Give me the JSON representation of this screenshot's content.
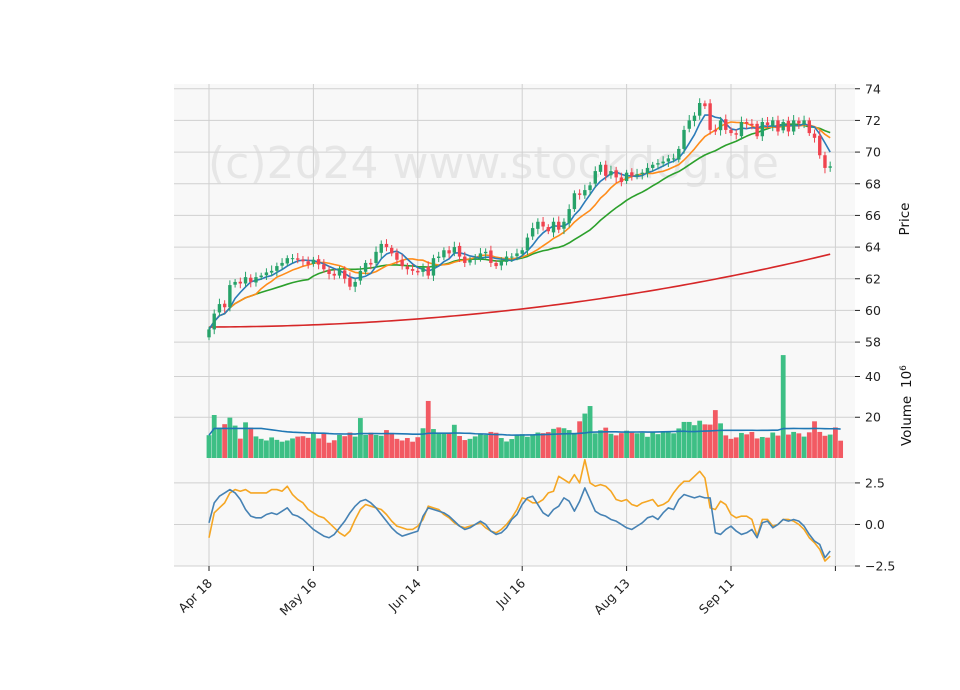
{
  "watermark": "(c)2024 www.stockdog.de",
  "colors": {
    "up": "#26a269",
    "down": "#f0434f",
    "up_vol": "#3dbf85",
    "down_vol": "#f25a63",
    "ma_blue": "#2b7bb9",
    "ma_orange": "#ff8c1a",
    "ma_green": "#2ca02c",
    "ma_red": "#d62728",
    "vol_ma": "#1f77b4",
    "osc_blue": "#4682b4",
    "osc_orange": "#f5a623",
    "panel_bg": "#f8f8f8",
    "grid": "#d0d0d0"
  },
  "chart_data": {
    "type": "candlestick",
    "x_tick_labels": [
      "Apr 18",
      "May 16",
      "Jun 14",
      "Jul 16",
      "Aug 13",
      "Sep 11"
    ],
    "x_tick_indices": [
      0,
      20,
      40,
      60,
      80,
      100
    ],
    "num_bars": 120,
    "panels": {
      "price": {
        "ylabel": "Price",
        "ylim": [
          57.5,
          74.3
        ],
        "ticks": [
          58,
          60,
          62,
          64,
          66,
          68,
          70,
          72,
          74
        ]
      },
      "volume": {
        "ylabel": "Volume",
        "ylabel_exp": "6",
        "ylim": [
          0,
          53
        ],
        "ticks": [
          20,
          40
        ]
      },
      "oscillator": {
        "ylim": [
          -2.5,
          4.0
        ],
        "ticks": [
          -2.5,
          0.0,
          2.5
        ],
        "tick_labels": [
          "−2.5",
          "0.0",
          "2.5"
        ]
      }
    },
    "closes": [
      58.8,
      59.8,
      60.4,
      60.2,
      61.6,
      61.8,
      61.7,
      62.1,
      61.8,
      62.1,
      62.2,
      62.4,
      62.5,
      62.8,
      63.0,
      63.3,
      63.3,
      63.2,
      63.1,
      62.9,
      63.2,
      62.9,
      62.6,
      62.3,
      62.2,
      62.6,
      62.0,
      61.5,
      61.8,
      62.5,
      63.0,
      62.9,
      63.7,
      64.2,
      64.0,
      63.6,
      63.2,
      62.8,
      62.6,
      62.5,
      62.4,
      62.7,
      62.2,
      63.3,
      63.4,
      63.8,
      63.6,
      64.0,
      63.4,
      63.0,
      63.2,
      63.3,
      63.6,
      63.7,
      63.0,
      62.8,
      63.1,
      63.4,
      63.4,
      63.6,
      63.8,
      64.6,
      65.2,
      65.6,
      65.3,
      65.0,
      65.6,
      65.1,
      65.6,
      66.4,
      67.4,
      67.3,
      67.6,
      67.9,
      68.8,
      69.2,
      68.5,
      68.8,
      68.4,
      68.1,
      68.7,
      68.5,
      68.6,
      68.7,
      69.0,
      69.2,
      69.3,
      69.4,
      69.6,
      69.6,
      70.2,
      71.4,
      72.0,
      72.3,
      73.1,
      72.9,
      71.4,
      71.3,
      72.0,
      71.4,
      71.2,
      71.1,
      71.9,
      71.8,
      71.7,
      71.0,
      71.9,
      71.7,
      72.0,
      71.3,
      71.9,
      71.3,
      72.0,
      71.8,
      72.0,
      71.2,
      70.9,
      69.8,
      69.0,
      69.1
    ],
    "volumes": [
      11.2,
      21.1,
      14.9,
      16.6,
      19.8,
      15.9,
      9.5,
      17.5,
      14.9,
      10.6,
      9.4,
      8.6,
      10.1,
      8.9,
      8.0,
      8.6,
      9.6,
      10.5,
      10.7,
      9.9,
      12.2,
      9.6,
      11.8,
      7.5,
      8.7,
      11.3,
      10.7,
      12.5,
      10.5,
      19.6,
      11.3,
      12.4,
      11.3,
      10.9,
      13.7,
      12.3,
      9.4,
      8.6,
      9.8,
      8.0,
      10.2,
      14.6,
      28.0,
      14.2,
      12.0,
      12.2,
      12.0,
      16.3,
      10.8,
      8.8,
      9.4,
      10.6,
      11.6,
      11.3,
      12.8,
      12.4,
      9.8,
      8.1,
      9.3,
      11.3,
      11.7,
      10.4,
      11.4,
      12.5,
      12.2,
      12.7,
      14.3,
      15.0,
      14.6,
      13.7,
      12.3,
      18.0,
      21.8,
      25.5,
      12.1,
      13.6,
      14.9,
      11.9,
      11.1,
      12.2,
      13.4,
      12.4,
      12.1,
      12.4,
      10.4,
      13.0,
      11.7,
      12.8,
      12.6,
      12.1,
      14.5,
      17.7,
      17.7,
      16.1,
      18.3,
      16.5,
      16.4,
      23.5,
      17.0,
      11.1,
      9.4,
      10.1,
      12.3,
      11.6,
      12.8,
      9.6,
      10.3,
      10.0,
      12.5,
      11.0,
      50.5,
      11.5,
      12.8,
      12.1,
      10.5,
      12.6,
      18.0,
      12.8,
      10.9,
      11.5,
      15.0,
      8.5
    ],
    "oscillator_blue": [
      0.1,
      1.3,
      1.7,
      1.9,
      2.1,
      1.9,
      1.5,
      0.9,
      0.5,
      0.4,
      0.4,
      0.6,
      0.7,
      0.6,
      0.8,
      1.0,
      0.6,
      0.5,
      0.3,
      0.0,
      -0.3,
      -0.5,
      -0.7,
      -0.8,
      -0.6,
      -0.2,
      0.2,
      0.7,
      1.1,
      1.4,
      1.5,
      1.3,
      1.0,
      0.6,
      0.2,
      -0.2,
      -0.5,
      -0.7,
      -0.6,
      -0.5,
      -0.4,
      0.5,
      1.0,
      0.9,
      0.8,
      0.7,
      0.5,
      0.2,
      -0.1,
      -0.3,
      -0.2,
      0.0,
      0.2,
      0.0,
      -0.4,
      -0.6,
      -0.5,
      -0.2,
      0.3,
      0.6,
      1.2,
      1.6,
      1.7,
      1.2,
      0.7,
      0.5,
      0.9,
      1.1,
      1.6,
      1.4,
      0.8,
      1.4,
      2.2,
      1.5,
      0.8,
      0.6,
      0.5,
      0.3,
      0.2,
      0.0,
      -0.2,
      -0.3,
      -0.1,
      0.1,
      0.4,
      0.5,
      0.3,
      0.7,
      1.0,
      0.9,
      1.5,
      1.8,
      1.7,
      1.6,
      1.7,
      1.6,
      1.6,
      -0.5,
      -0.6,
      -0.3,
      -0.1,
      -0.4,
      -0.6,
      -0.5,
      -0.3,
      -0.8,
      0.1,
      0.2,
      -0.2,
      0.0,
      0.3,
      0.2,
      0.3,
      0.2,
      -0.1,
      -0.6,
      -1.0,
      -1.2,
      -2.0,
      -1.6
    ],
    "oscillator_orange": [
      -0.8,
      0.7,
      1.0,
      1.3,
      1.9,
      2.1,
      2.0,
      2.1,
      1.9,
      1.9,
      1.9,
      1.9,
      2.1,
      2.1,
      2.0,
      2.3,
      1.8,
      1.5,
      1.3,
      0.9,
      0.7,
      0.5,
      0.4,
      0.1,
      -0.2,
      -0.5,
      -0.7,
      -0.4,
      0.3,
      0.9,
      1.2,
      1.1,
      1.0,
      0.9,
      0.6,
      0.2,
      -0.1,
      -0.2,
      -0.3,
      -0.3,
      -0.1,
      0.3,
      1.1,
      1.0,
      0.9,
      0.6,
      0.4,
      0.1,
      -0.1,
      -0.2,
      -0.1,
      0.0,
      0.1,
      -0.2,
      -0.4,
      -0.5,
      -0.3,
      0.0,
      0.4,
      0.9,
      1.6,
      1.5,
      1.3,
      1.3,
      1.5,
      1.9,
      2.0,
      2.9,
      2.7,
      2.5,
      3.0,
      2.5,
      3.9,
      2.5,
      2.3,
      2.4,
      2.3,
      2.0,
      1.5,
      1.4,
      1.5,
      1.2,
      1.1,
      1.3,
      1.4,
      1.5,
      1.1,
      1.2,
      1.4,
      1.9,
      2.3,
      2.6,
      2.6,
      2.9,
      3.2,
      2.8,
      1.0,
      0.9,
      1.4,
      1.2,
      0.6,
      0.4,
      0.5,
      0.5,
      0.3,
      -0.7,
      0.3,
      0.3,
      -0.1,
      0.0,
      0.3,
      0.3,
      0.2,
      0.0,
      -0.3,
      -0.8,
      -1.1,
      -1.5,
      -2.2,
      -1.9
    ]
  }
}
